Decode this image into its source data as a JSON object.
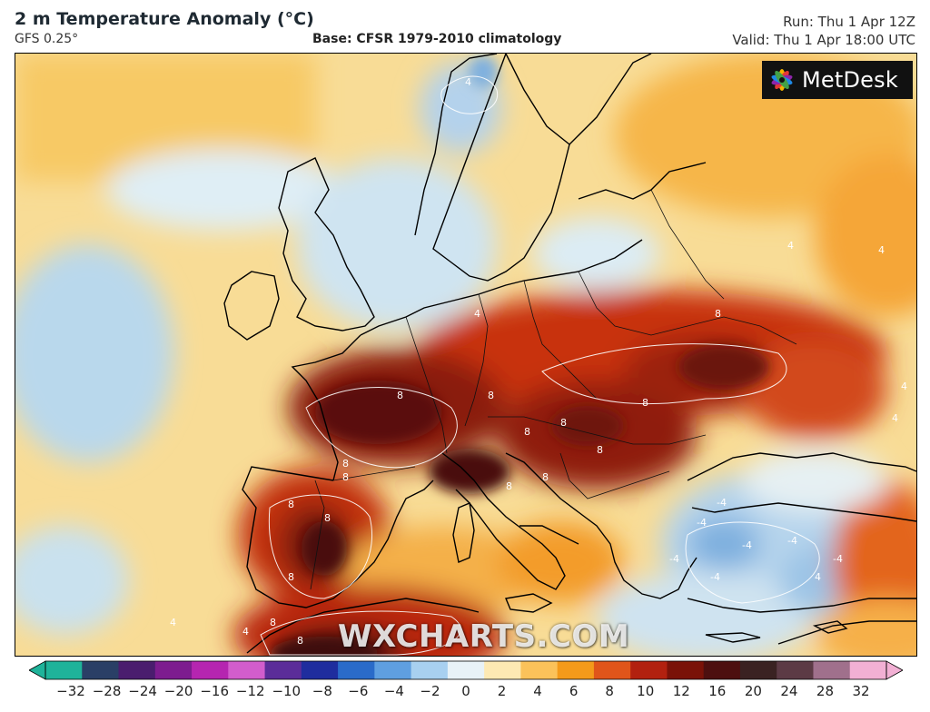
{
  "header": {
    "title": "2 m Temperature Anomaly (°C)",
    "subtitle": "GFS 0.25°",
    "base": "Base: CFSR 1979-2010 climatology",
    "run": "Run: Thu 1 Apr 12Z",
    "valid": "Valid: Thu 1 Apr 18:00 UTC"
  },
  "logo": {
    "text": "MetDesk",
    "icon": "flower-logo-icon"
  },
  "watermark": "WXCHARTS.COM",
  "colorbar": {
    "ticks": [
      "−32",
      "−28",
      "−24",
      "−20",
      "−16",
      "−12",
      "−10",
      "−8",
      "−6",
      "−4",
      "−2",
      "0",
      "2",
      "4",
      "6",
      "8",
      "10",
      "12",
      "16",
      "20",
      "24",
      "28",
      "32"
    ],
    "colors": [
      "#1fb39a",
      "#2a3f66",
      "#4a1d6e",
      "#7d1c8f",
      "#b525b0",
      "#d25dcc",
      "#5b2d99",
      "#1f2d9e",
      "#2a6bc9",
      "#5f9fe0",
      "#a8d0f0",
      "#e8f2f7",
      "#fde9b3",
      "#fbc25a",
      "#f49a1a",
      "#e0551a",
      "#b2210f",
      "#7a1208",
      "#4d0f0f",
      "#3a2222",
      "#5c3a45",
      "#a0708c",
      "#f2b0d4"
    ]
  },
  "map_labels": {
    "warm": [
      "8",
      "8",
      "8",
      "8",
      "8",
      "8",
      "8",
      "8",
      "8",
      "8",
      "8",
      "8",
      "8",
      "8",
      "8",
      "8"
    ],
    "mild": [
      "4",
      "4",
      "4",
      "4",
      "4",
      "4",
      "4",
      "4",
      "4"
    ],
    "cold": [
      "-4",
      "-4",
      "-4",
      "-4",
      "-4",
      "-4",
      "-4"
    ]
  }
}
